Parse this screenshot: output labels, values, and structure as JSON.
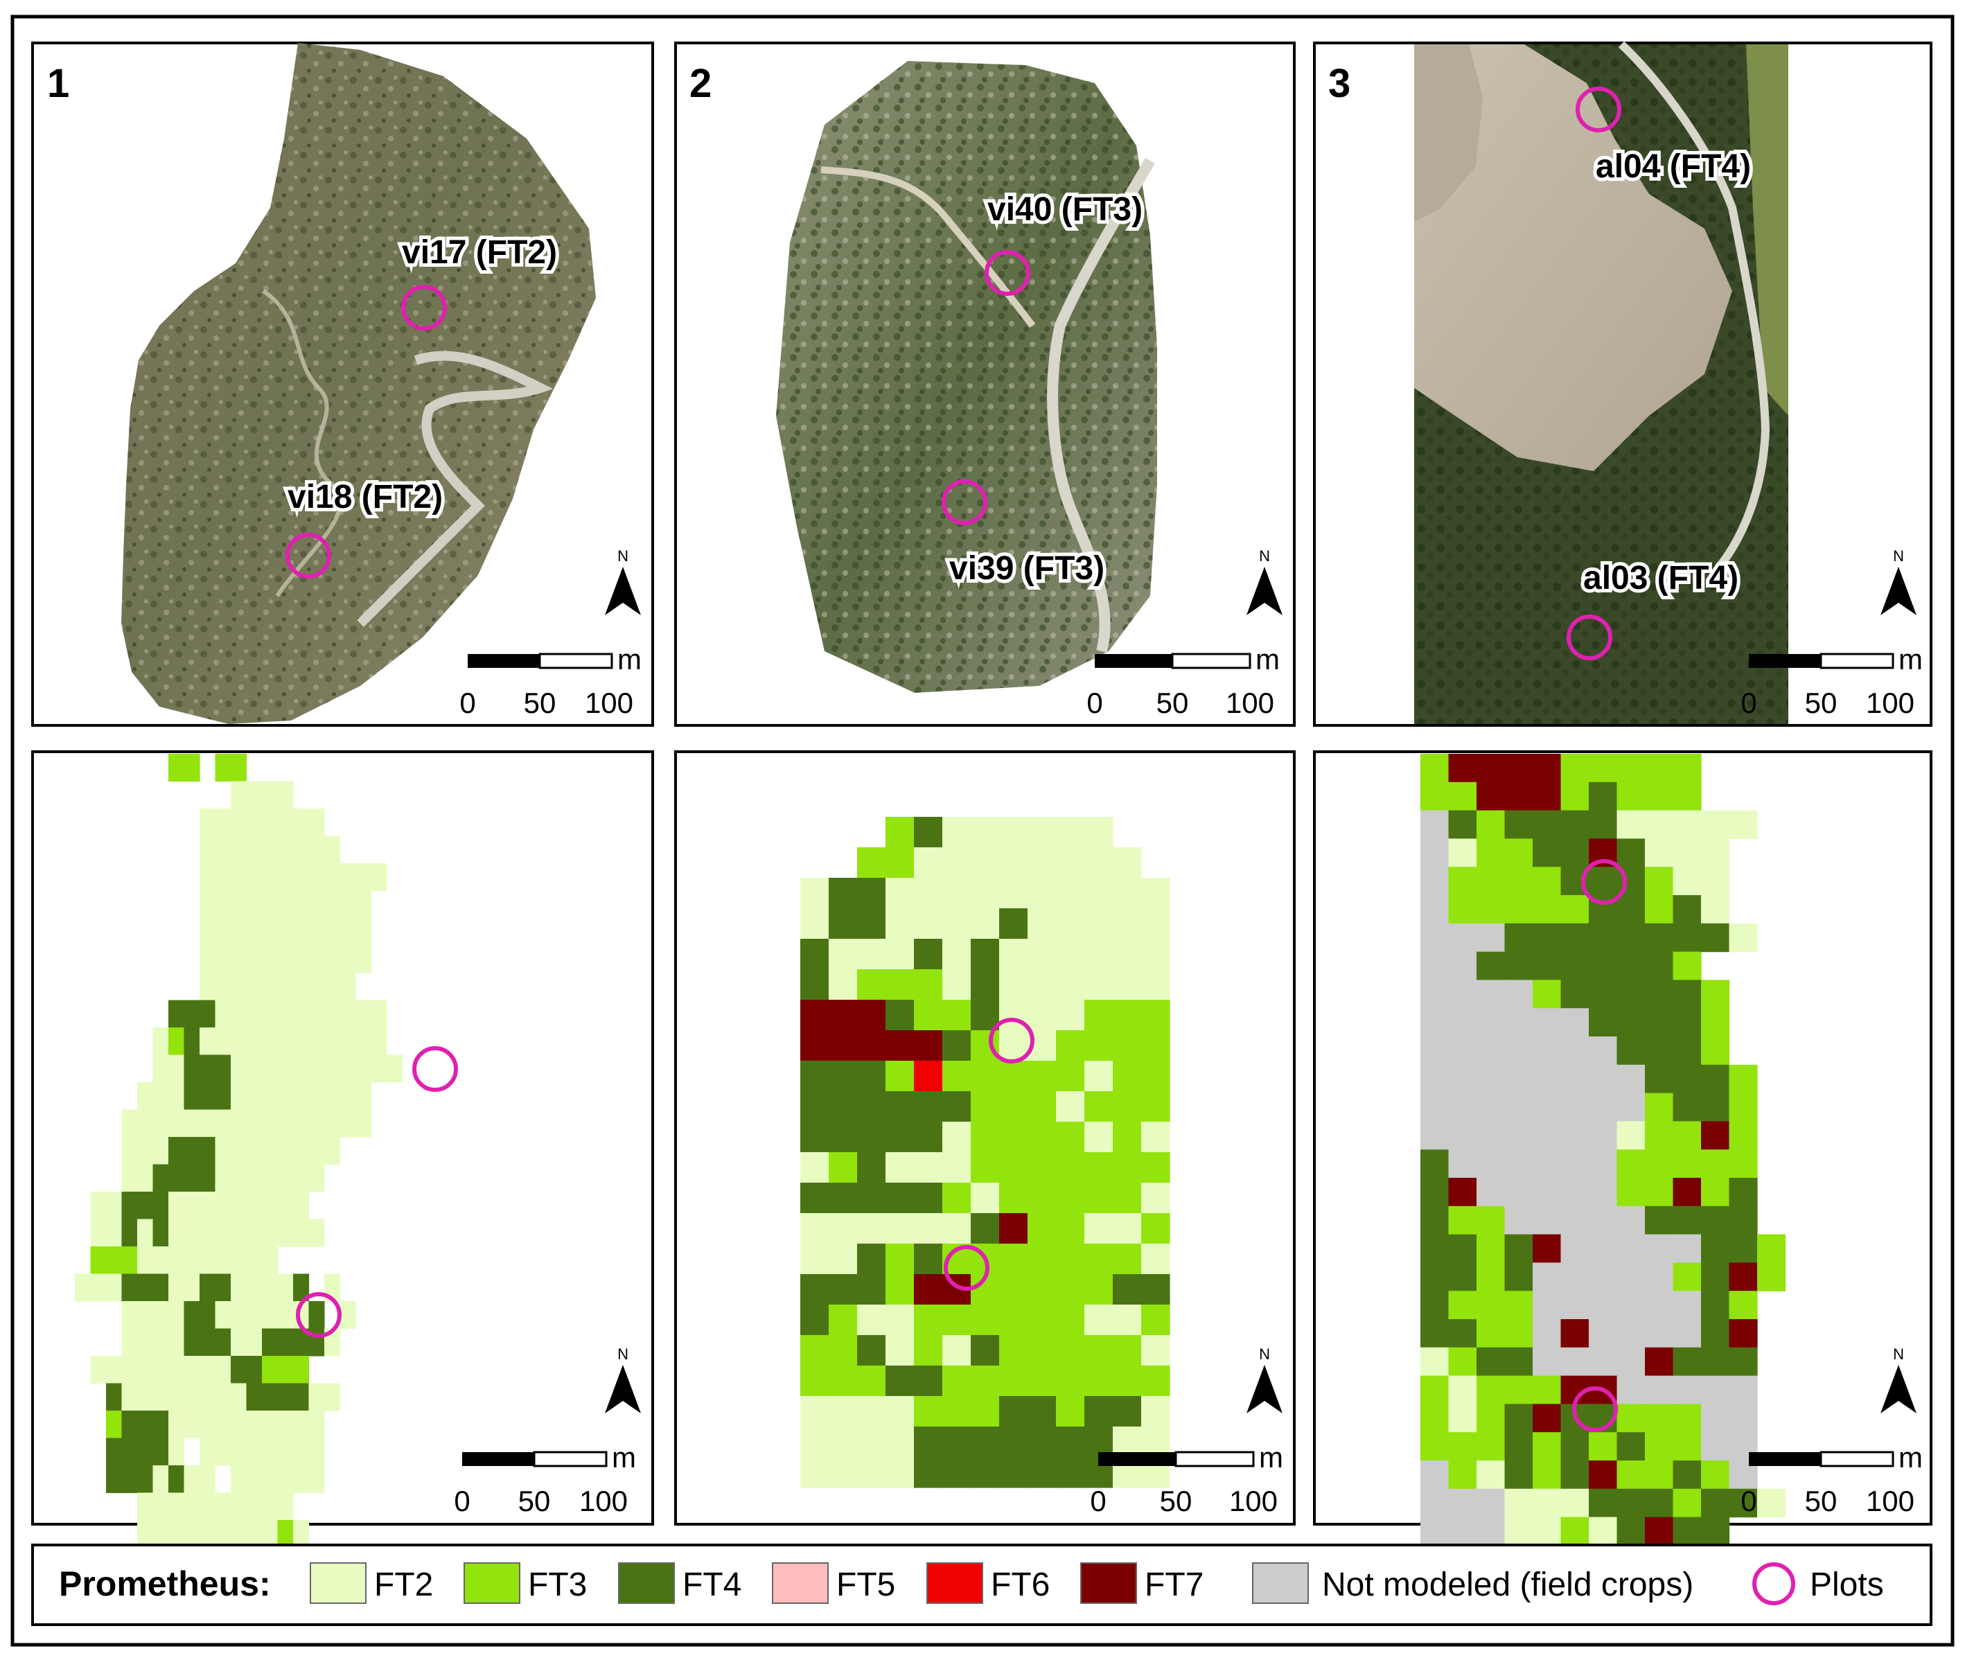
{
  "panels": [
    {
      "number": "1",
      "plots": [
        {
          "label": "vi17 (FT2)"
        },
        {
          "label": "vi18 (FT2)"
        }
      ]
    },
    {
      "number": "2",
      "plots": [
        {
          "label": "vi40 (FT3)"
        },
        {
          "label": "vi39 (FT3)"
        }
      ]
    },
    {
      "number": "3",
      "plots": [
        {
          "label": "al04 (FT4)"
        },
        {
          "label": "al03 (FT4)"
        }
      ]
    }
  ],
  "map_elements": {
    "north_arrow_label": "N",
    "scale_unit": "m",
    "scale_ticks": [
      "0",
      "50",
      "100"
    ]
  },
  "legend": {
    "title": "Prometheus:",
    "items": [
      {
        "key": "FT2",
        "label": "FT2",
        "color": "#e8fcc2"
      },
      {
        "key": "FT3",
        "label": "FT3",
        "color": "#93e30c"
      },
      {
        "key": "FT4",
        "label": "FT4",
        "color": "#4a7413"
      },
      {
        "key": "FT5",
        "label": "FT5",
        "color": "#ffbdbd"
      },
      {
        "key": "FT6",
        "label": "FT6",
        "color": "#f00000"
      },
      {
        "key": "FT7",
        "label": "FT7",
        "color": "#7a0000"
      },
      {
        "key": "NM",
        "label": "Not modeled (field crops)",
        "color": "#cccccc"
      }
    ],
    "plots_label": "Plots",
    "plot_color": "#e020b0"
  },
  "grids": [
    [
      "......AA.AA..........",
      "..........1111.......",
      "........11111111.....",
      "........111111111....",
      "........111111111111.",
      "........11111111111..",
      "........11111111111..",
      "........11111111111..",
      "........1111111111...",
      "......33311111111111.",
      ".....1A3111111111111.",
      ".....1133311111111111",
      "....111333111111111..",
      "...1111111111111111..",
      "...11133311111111....",
      "...1133331111111.....",
      ".11333111111111......",
      ".113131111111111.....",
      ".222111111111........",
      "111333113311113.1....",
      "...1111331111113.1....",
      "...11113331133331....",
      ".11111111133A22.....",
      "..311111111333311....",
      "..A3331111111111......",
      "..33331.11111111......",
      "..3331311.111111.........",
      "....1111111111........",
      "....111111111A1......"
    ],
    [
      "............",
      "...23111111.",
      "..2211111111",
      "1331111111111",
      "1331111311111",
      "3111313111111",
      "3122213111111",
      "7773223111222",
      "7777732112222",
      "3332622222122",
      "3333332221222",
      "3333312222121",
      "1231112222222",
      "3333321222221",
      "1111113722112",
      "1132322222221",
      "3332772222233",
      "3211222222112",
      "2231213222221",
      "2223322222222",
      "1111222332331",
      "1111333333311",
      "1111333333311"
    ],
    [
      "2777722222",
      "2277723222",
      "N32333311111",
      "N1223373111",
      "N2222333211",
      "N2222233231",
      "NNN333333331",
      "NN33333332",
      "NNNN2333332",
      "NNNNNN33332",
      "NNNNNNN3332",
      "NNNNNNNN3332",
      "NNNNNNNN2332",
      "NNNNNNN12272",
      "3NNNNNN22222",
      "37NNNNN22723",
      "322NNNNN3333",
      "33237NNNNN332",
      "3323NNNNN2372",
      "3222NNNNNN32",
      "3322N7NNNN37",
      "1233NNNN7333",
      "2122277NNNNN",
      "2123733222NN",
      "2223232322NN",
      "N2132372232N",
      "NNN1113332331",
      "NNN11213733"
    ]
  ]
}
